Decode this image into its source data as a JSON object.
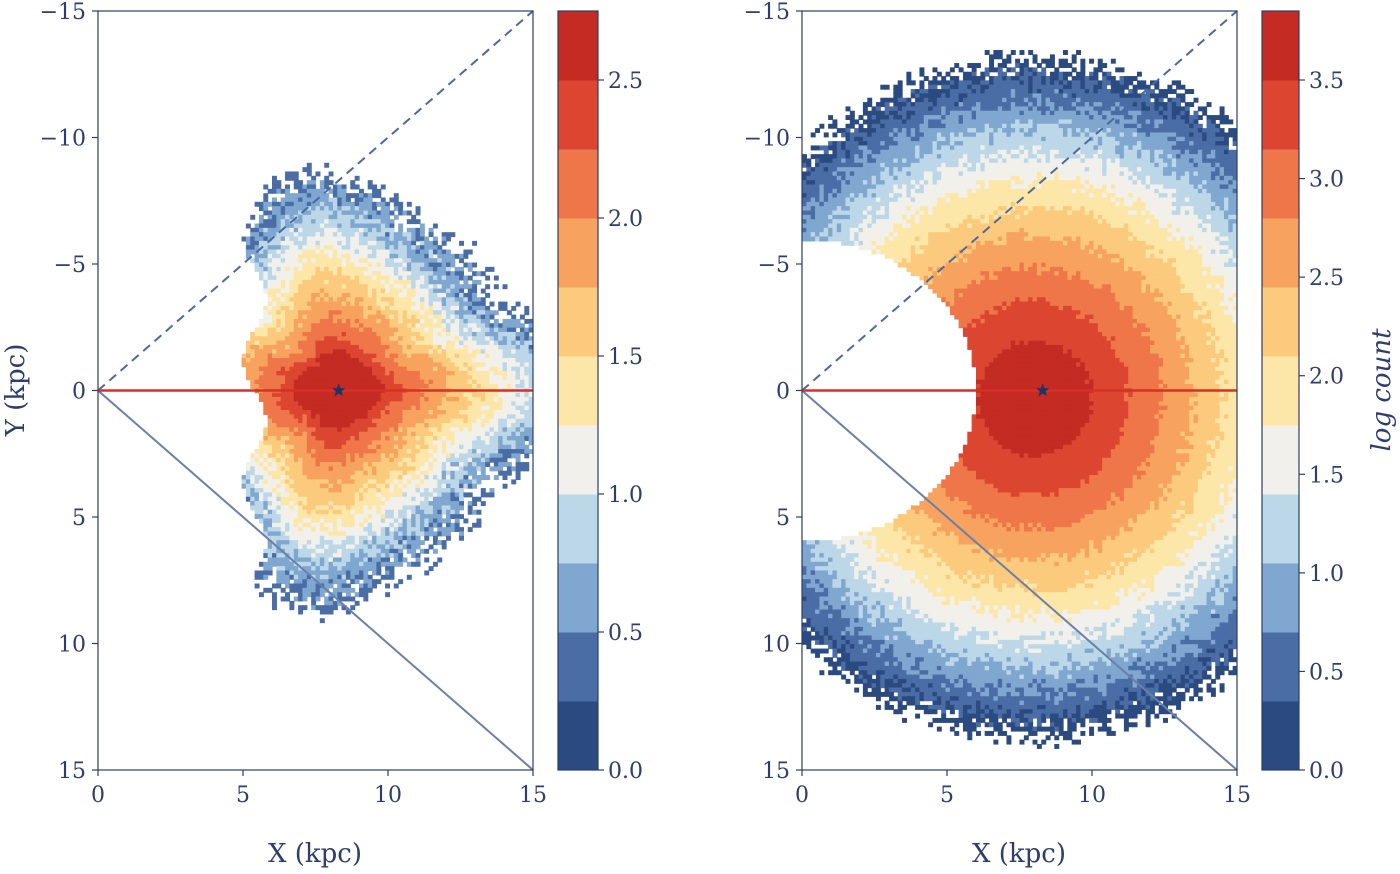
{
  "chart_data": [
    {
      "type": "heatmap",
      "id": "left",
      "xlabel": "X (kpc)",
      "ylabel": "Y (kpc)",
      "xlim": [
        0,
        15
      ],
      "ylim": [
        15,
        -15
      ],
      "xticks": [
        0,
        5,
        10,
        15
      ],
      "yticks": [
        -15,
        -10,
        -5,
        0,
        5,
        10,
        15
      ],
      "xtick_labels": [
        "0",
        "5",
        "10",
        "15"
      ],
      "ytick_labels": [
        "−15",
        "−10",
        "−5",
        "0",
        "5",
        "10",
        "15"
      ],
      "grid": false,
      "sun_position": [
        8.3,
        0
      ],
      "lines": [
        {
          "style": "dashed",
          "color": "#4a6a9e",
          "from": [
            0,
            0
          ],
          "to": [
            15,
            -15
          ]
        },
        {
          "style": "solid",
          "color": "#6a80aa",
          "from": [
            0,
            0
          ],
          "to": [
            15,
            15
          ]
        },
        {
          "style": "solid",
          "color": "#d73027",
          "from": [
            0,
            0
          ],
          "to": [
            15,
            0
          ]
        }
      ],
      "colorbar": {
        "label": "",
        "range": [
          0,
          2.75
        ],
        "ticks": [
          0.0,
          0.5,
          1.0,
          1.5,
          2.0,
          2.5
        ],
        "tick_labels": [
          "0.0",
          "0.5",
          "1.0",
          "1.5",
          "2.0",
          "2.5"
        ],
        "levels": [
          0,
          0.25,
          0.5,
          0.75,
          1.0,
          1.25,
          1.5,
          1.75,
          2.0,
          2.25,
          2.5,
          2.75
        ],
        "colors": [
          "#2b4a80",
          "#4a6da6",
          "#7fa7cf",
          "#bcd8e8",
          "#f2f0ea",
          "#fde7a8",
          "#fbca7c",
          "#f7a25f",
          "#ee7648",
          "#dc4631",
          "#c42b23"
        ]
      }
    },
    {
      "type": "heatmap",
      "id": "right",
      "xlabel": "X (kpc)",
      "ylabel": "",
      "xlim": [
        0,
        15
      ],
      "ylim": [
        15,
        -15
      ],
      "xticks": [
        0,
        5,
        10,
        15
      ],
      "yticks": [
        -15,
        -10,
        -5,
        0,
        5,
        10,
        15
      ],
      "xtick_labels": [
        "0",
        "5",
        "10",
        "15"
      ],
      "ytick_labels": [
        "−15",
        "−10",
        "−5",
        "0",
        "5",
        "10",
        "15"
      ],
      "grid": false,
      "sun_position": [
        8.3,
        0
      ],
      "lines": [
        {
          "style": "dashed",
          "color": "#4a6a9e",
          "from": [
            0,
            0
          ],
          "to": [
            15,
            -15
          ]
        },
        {
          "style": "solid",
          "color": "#6a80aa",
          "from": [
            0,
            0
          ],
          "to": [
            15,
            15
          ]
        },
        {
          "style": "solid",
          "color": "#d73027",
          "from": [
            0,
            0
          ],
          "to": [
            15,
            0
          ]
        }
      ],
      "colorbar": {
        "label": "log count",
        "range": [
          0,
          3.85
        ],
        "ticks": [
          0.0,
          0.5,
          1.0,
          1.5,
          2.0,
          2.5,
          3.0,
          3.5
        ],
        "tick_labels": [
          "0.0",
          "0.5",
          "1.0",
          "1.5",
          "2.0",
          "2.5",
          "3.0",
          "3.5"
        ],
        "levels": [
          0,
          0.35,
          0.7,
          1.05,
          1.4,
          1.75,
          2.1,
          2.45,
          2.8,
          3.15,
          3.5,
          3.85
        ],
        "colors": [
          "#2b4a80",
          "#4a6da6",
          "#7fa7cf",
          "#bcd8e8",
          "#f2f0ea",
          "#fde7a8",
          "#fbca7c",
          "#f7a25f",
          "#ee7648",
          "#dc4631",
          "#c42b23"
        ]
      }
    }
  ]
}
